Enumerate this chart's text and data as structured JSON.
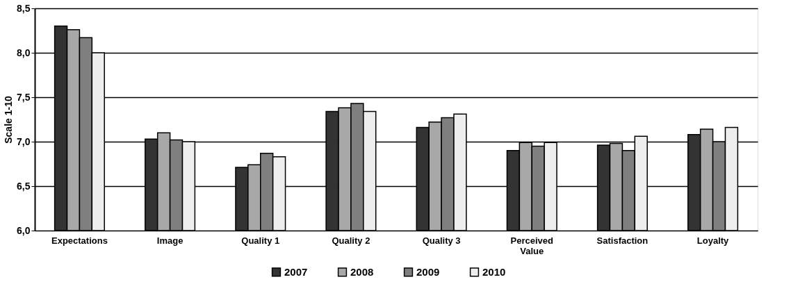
{
  "chart_data": {
    "type": "bar",
    "ylabel": "Scale 1-10",
    "categories": [
      "Expectations",
      "Image",
      "Quality 1",
      "Quality 2",
      "Quality 3",
      "Perceived Value",
      "Satisfaction",
      "Loyalty"
    ],
    "series": [
      {
        "name": "2007",
        "color": "#333333",
        "values": [
          8.3,
          7.03,
          6.71,
          7.34,
          7.16,
          6.9,
          6.96,
          7.08
        ]
      },
      {
        "name": "2008",
        "color": "#a8a8a8",
        "values": [
          8.26,
          7.1,
          6.74,
          7.38,
          7.22,
          6.99,
          6.98,
          7.14
        ]
      },
      {
        "name": "2009",
        "color": "#7f7f7f",
        "values": [
          8.17,
          7.02,
          6.87,
          7.43,
          7.27,
          6.95,
          6.9,
          7.0
        ]
      },
      {
        "name": "2010",
        "color": "#eeeeee",
        "values": [
          8.0,
          7.0,
          6.83,
          7.34,
          7.31,
          6.99,
          7.06,
          7.16
        ]
      }
    ],
    "ylim": [
      6.0,
      8.5
    ],
    "yticks": [
      {
        "value": 6.0,
        "label": "6,0"
      },
      {
        "value": 6.5,
        "label": "6,5"
      },
      {
        "value": 7.0,
        "label": "7,0"
      },
      {
        "value": 7.5,
        "label": "7,5"
      },
      {
        "value": 8.0,
        "label": "8,0"
      },
      {
        "value": 8.5,
        "label": "8,5"
      }
    ],
    "grid": "y",
    "legend": "bottom"
  }
}
